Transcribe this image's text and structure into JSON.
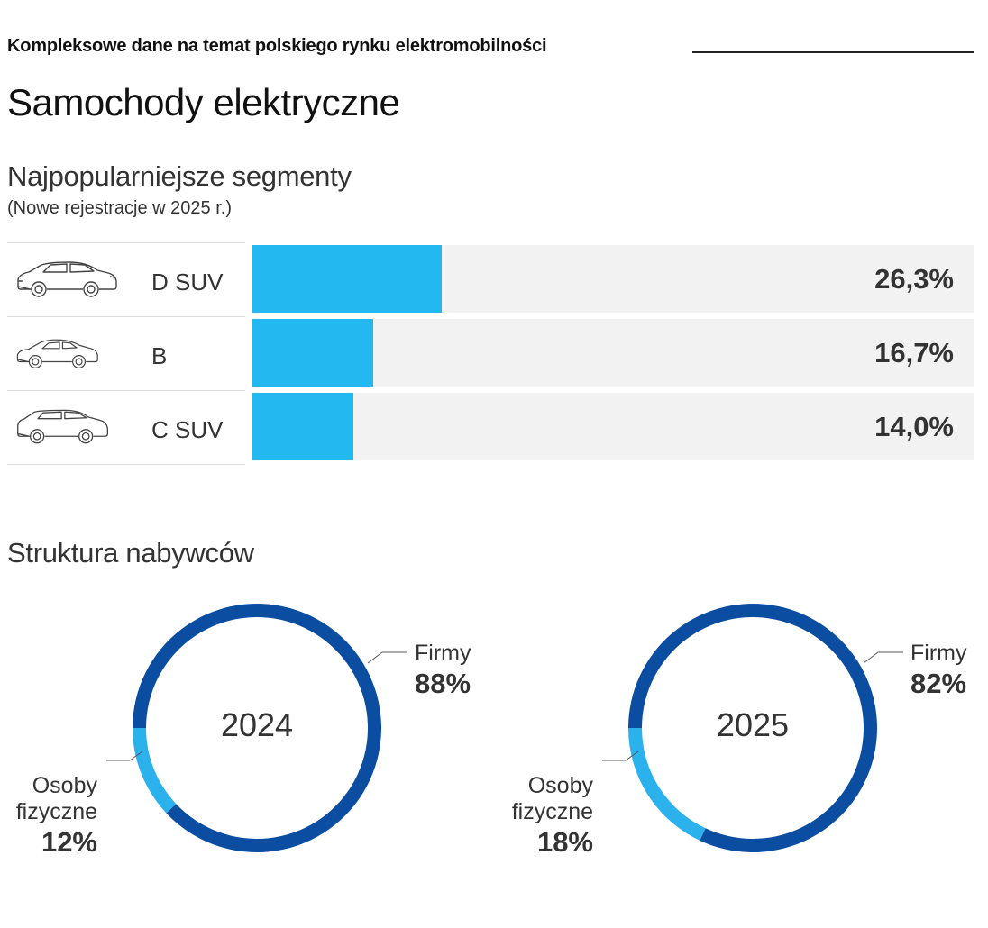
{
  "header": {
    "kicker": "Kompleksowe dane na temat polskiego rynku elektromobilności",
    "title": "Samochody elektryczne"
  },
  "segments_section": {
    "title": "Najpopularniejsze segmenty",
    "subtitle": "(Nowe rejestracje w 2025 r.)"
  },
  "buyers_section": {
    "title": "Struktura nabywców"
  },
  "colors": {
    "bar": "#23b8ef",
    "track": "#f2f2f3",
    "firmy": "#0a4da1",
    "osoby": "#2bb2ec"
  },
  "chart_data": [
    {
      "type": "bar",
      "orientation": "horizontal",
      "title": "Najpopularniejsze segmenty",
      "subtitle": "(Nowe rejestracje w 2025 r.)",
      "categories": [
        "D SUV",
        "B",
        "C SUV"
      ],
      "values": [
        26.3,
        16.7,
        14.0
      ],
      "value_labels": [
        "26,3%",
        "16,7%",
        "14,0%"
      ],
      "icons": [
        "car-suv-icon",
        "car-hatchback-icon",
        "car-suv-icon"
      ],
      "xlim": [
        0,
        100
      ],
      "unit": "%"
    },
    {
      "type": "pie",
      "variant": "donut",
      "center_label": "2024",
      "slices": [
        {
          "name": "Firmy",
          "value": 88,
          "label": "88%"
        },
        {
          "name": "Osoby fizyczne",
          "value": 12,
          "label": "12%"
        }
      ]
    },
    {
      "type": "pie",
      "variant": "donut",
      "center_label": "2025",
      "slices": [
        {
          "name": "Firmy",
          "value": 82,
          "label": "82%"
        },
        {
          "name": "Osoby fizyczne",
          "value": 18,
          "label": "18%"
        }
      ]
    }
  ]
}
